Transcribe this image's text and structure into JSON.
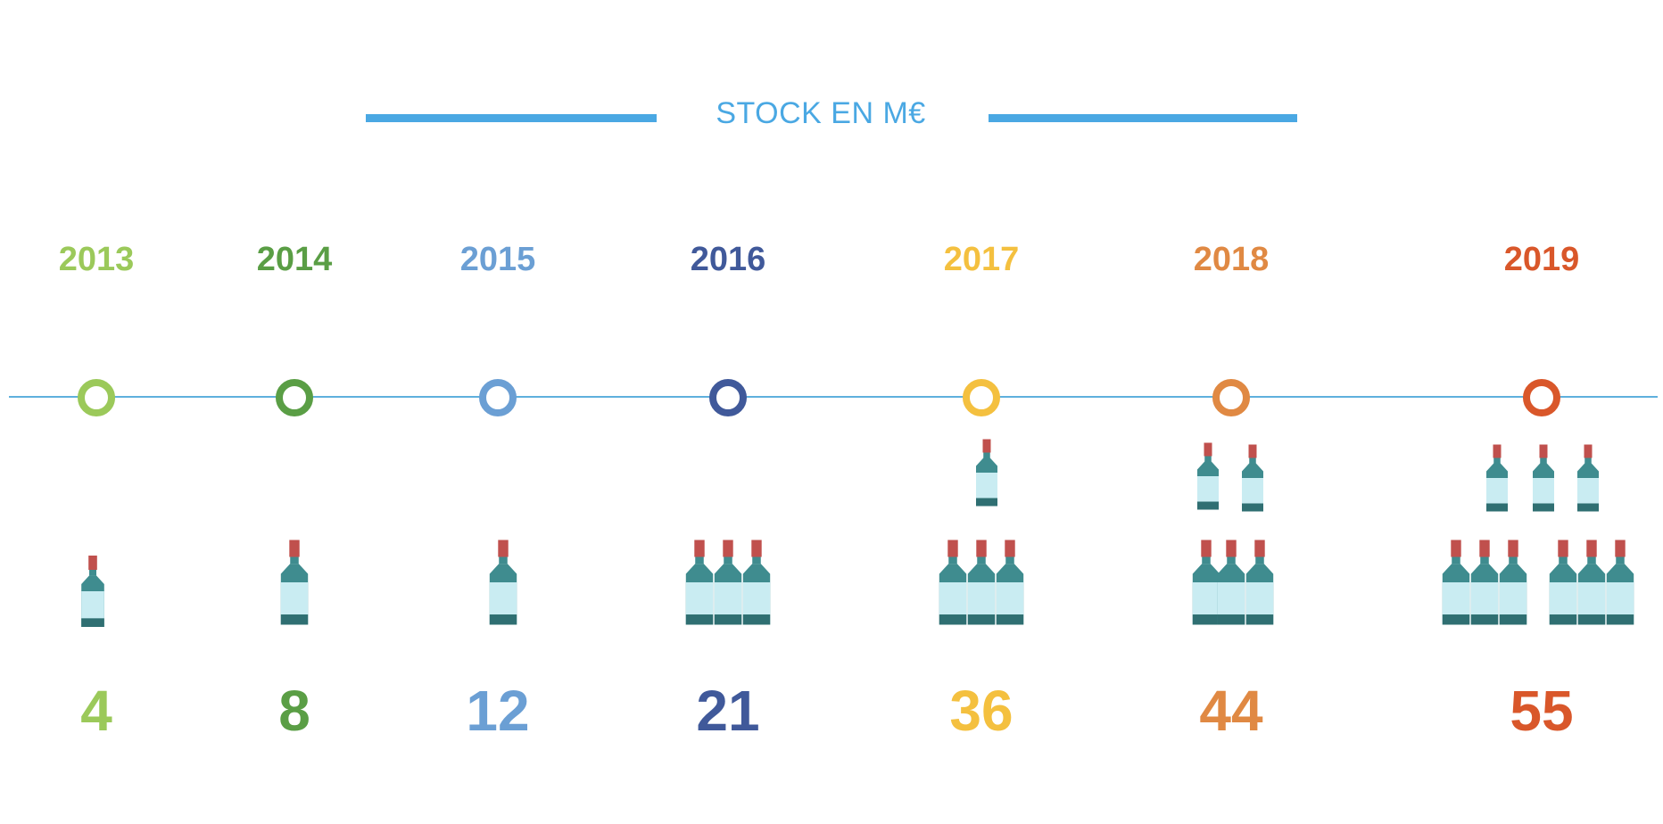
{
  "chart_data": {
    "type": "pictogram",
    "title": "STOCK EN M€",
    "x_label": "",
    "y_label": "",
    "points": [
      {
        "year": "2013",
        "value": "4",
        "color": "#9bc95a"
      },
      {
        "year": "2014",
        "value": "8",
        "color": "#5a9e45"
      },
      {
        "year": "2015",
        "value": "12",
        "color": "#6b9fd4"
      },
      {
        "year": "2016",
        "value": "21",
        "color": "#40599a"
      },
      {
        "year": "2017",
        "value": "36",
        "color": "#f4c03f"
      },
      {
        "year": "2018",
        "value": "44",
        "color": "#e08943"
      },
      {
        "year": "2019",
        "value": "55",
        "color": "#d9572a"
      }
    ]
  },
  "colors": {
    "accent": "#4aa8e3",
    "timeline": "#5fb0dd",
    "bottle_cap": "#c0504d",
    "bottle_body": "#3f8c8f",
    "bottle_label": "#c9ecf2"
  },
  "icons": {
    "bottle": "wine-bottle-icon"
  }
}
